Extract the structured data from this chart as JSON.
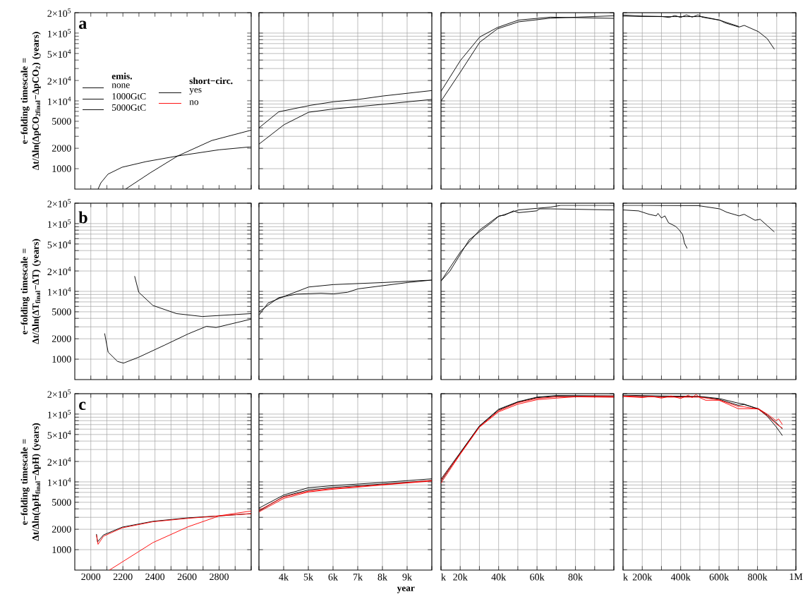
{
  "chart_data": [
    {
      "type": "line",
      "log": "y",
      "xlim": [
        1900,
        3000
      ],
      "ylim": [
        500,
        200000
      ],
      "tick_labels": "y",
      "ylabel": "e−folding timescale = Δt/Δln(ΔpCO$_{2final}$−ΔpCO$_{2}$) (years)",
      "annotations": [
        "a",
        "emis.",
        "none",
        "1000GtC",
        "5000GtC",
        "short−circ.",
        "yes",
        "no"
      ],
      "xticks": [
        2000,
        2100,
        2200,
        2300,
        2400,
        2500,
        2600,
        2700,
        2800,
        2900,
        3000
      ],
      "yticks": [
        1000,
        2000,
        {
          "value": 3000,
          "label": null
        },
        {
          "value": 4000,
          "label": null
        },
        5000,
        {
          "value": 6000,
          "label": null
        },
        {
          "value": 7000,
          "label": null
        },
        {
          "value": 8000,
          "label": null
        },
        {
          "value": 9000,
          "label": null
        },
        {
          "value": 10000,
          "label": "1×10$^{4}$"
        },
        {
          "value": 20000,
          "label": "2×10$^{4}$"
        },
        {
          "value": 30000,
          "label": null
        },
        {
          "value": 40000,
          "label": null
        },
        {
          "value": 50000,
          "label": "5×10$^{4}$"
        },
        {
          "value": 60000,
          "label": null
        },
        {
          "value": 70000,
          "label": null
        },
        {
          "value": 80000,
          "label": null
        },
        {
          "value": 90000,
          "label": null
        },
        {
          "value": 100000,
          "label": "1×10$^{5}$"
        },
        {
          "value": 200000,
          "label": "2×10$^{5}$"
        }
      ],
      "series": [
        {
          "color": "#000000",
          "x": [
            2045,
            2063,
            2107,
            2195,
            2344,
            2542,
            2800,
            3000
          ],
          "values": [
            500,
            620,
            830,
            1050,
            1270,
            1540,
            1900,
            2100
          ]
        },
        {
          "color": "#000000",
          "x": [
            2217,
            2371,
            2542,
            2754,
            3000
          ],
          "values": [
            500,
            870,
            1540,
            2600,
            3700
          ]
        }
      ]
    },
    {
      "type": "line",
      "log": "y",
      "grid": true,
      "xlim": [
        3000,
        10000
      ],
      "ylim": [
        500,
        200000
      ],
      "tick_labels": false,
      "xticks": [
        3000,
        4000,
        5000,
        6000,
        7000,
        8000,
        9000,
        10000
      ],
      "yticks": [
        1000,
        2000,
        3000,
        4000,
        5000,
        6000,
        7000,
        8000,
        9000,
        10000,
        20000,
        30000,
        40000,
        50000,
        60000,
        70000,
        80000,
        90000,
        100000,
        200000
      ],
      "series": [
        {
          "color": "#000000",
          "x": [
            3000,
            3800,
            5086,
            6014,
            7014,
            8014,
            10000
          ],
          "values": [
            4000,
            6900,
            8600,
            9700,
            10500,
            11800,
            14200
          ]
        },
        {
          "color": "#000000",
          "x": [
            3000,
            4014,
            5014,
            6014,
            8014,
            10000
          ],
          "values": [
            2300,
            4450,
            6800,
            7600,
            8900,
            10500
          ]
        }
      ]
    },
    {
      "type": "line",
      "log": "y",
      "grid": true,
      "xlim": [
        10000,
        100000
      ],
      "ylim": [
        500,
        200000
      ],
      "tick_labels": false,
      "xticks": [
        10000,
        20000,
        30000,
        40000,
        50000,
        60000,
        70000,
        80000,
        90000,
        100000
      ],
      "yticks": [
        1000,
        2000,
        3000,
        4000,
        5000,
        6000,
        7000,
        8000,
        9000,
        10000,
        20000,
        30000,
        40000,
        50000,
        60000,
        70000,
        80000,
        90000,
        100000,
        200000
      ],
      "series": [
        {
          "color": "#000000",
          "x": [
            10000,
            20100,
            30200,
            39400,
            50400,
            67000,
            100000
          ],
          "values": [
            13800,
            39400,
            87700,
            121000,
            155600,
            172000,
            165000
          ]
        },
        {
          "color": "#000000",
          "x": [
            10000,
            20100,
            30200,
            39400,
            50400,
            67000,
            100000
          ],
          "values": [
            9900,
            26600,
            73500,
            115600,
            146600,
            166000,
            180000
          ]
        }
      ]
    },
    {
      "type": "line",
      "log": "y",
      "grid": true,
      "xlim": [
        100000,
        1000000
      ],
      "ylim": [
        500,
        200000
      ],
      "tick_labels": false,
      "xticks": [
        100000,
        200000,
        300000,
        400000,
        500000,
        600000,
        700000,
        800000,
        900000,
        1000000
      ],
      "yticks": [
        1000,
        2000,
        3000,
        4000,
        5000,
        6000,
        7000,
        8000,
        9000,
        10000,
        20000,
        30000,
        40000,
        50000,
        60000,
        70000,
        80000,
        90000,
        100000,
        200000
      ],
      "series": [
        {
          "color": "#000000",
          "x": [
            100000,
            200000,
            300000,
            400000,
            511000,
            603000,
            631000,
            704000,
            731000,
            805000,
            851000,
            888000
          ],
          "values": [
            178000,
            176000,
            175000,
            175000,
            175000,
            155600,
            141500,
            122700,
            130000,
            105000,
            82700,
            57800
          ]
        },
        {
          "color": "#000000",
          "x": [
            100000,
            200000,
            300000,
            340000,
            370000,
            400000,
            430000,
            460000,
            490000,
            511000,
            603000,
            704000
          ],
          "values": [
            185000,
            178000,
            176000,
            170000,
            182000,
            170000,
            186000,
            172000,
            186000,
            172000,
            155000,
            125000
          ]
        }
      ]
    },
    {
      "type": "line",
      "log": "y",
      "grid": true,
      "xlim": [
        1900,
        3000
      ],
      "ylim": [
        500,
        200000
      ],
      "tick_labels": "y",
      "ylabel": "e−folding timescale = Δt/Δln(ΔT$_{final}$−ΔT) (years)",
      "annotations": [
        "b"
      ],
      "xticks": [
        2000,
        2100,
        2200,
        2300,
        2400,
        2500,
        2600,
        2700,
        2800,
        2900,
        3000
      ],
      "yticks": [
        1000,
        2000,
        {
          "value": 3000,
          "label": null
        },
        {
          "value": 4000,
          "label": null
        },
        5000,
        {
          "value": 6000,
          "label": null
        },
        {
          "value": 7000,
          "label": null
        },
        {
          "value": 8000,
          "label": null
        },
        {
          "value": 9000,
          "label": null
        },
        {
          "value": 10000,
          "label": "1×10$^{4}$"
        },
        {
          "value": 20000,
          "label": "2×10$^{4}$"
        },
        {
          "value": 30000,
          "label": null
        },
        {
          "value": 40000,
          "label": null
        },
        {
          "value": 50000,
          "label": "5×10$^{4}$"
        },
        {
          "value": 60000,
          "label": null
        },
        {
          "value": 70000,
          "label": null
        },
        {
          "value": 80000,
          "label": null
        },
        {
          "value": 90000,
          "label": null
        },
        {
          "value": 100000,
          "label": "1×10$^{5}$"
        },
        {
          "value": 200000,
          "label": "2×10$^{5}$"
        }
      ],
      "series": [
        {
          "color": "#000000",
          "x": [
            2273,
            2299,
            2387,
            2534,
            2695,
            3000
          ],
          "values": [
            16800,
            9700,
            6200,
            4700,
            4260,
            4700
          ]
        },
        {
          "color": "#000000",
          "x": [
            2086,
            2108,
            2167,
            2204,
            2299,
            2460,
            2607,
            2721,
            2781,
            3000
          ],
          "values": [
            2400,
            1270,
            925,
            875,
            1070,
            1610,
            2360,
            3050,
            2930,
            3900
          ]
        }
      ]
    },
    {
      "type": "line",
      "log": "y",
      "grid": true,
      "xlim": [
        3000,
        10000
      ],
      "ylim": [
        500,
        200000
      ],
      "tick_labels": false,
      "xticks": [
        3000,
        4000,
        5000,
        6000,
        7000,
        8000,
        9000,
        10000
      ],
      "yticks": [
        1000,
        2000,
        3000,
        4000,
        5000,
        6000,
        7000,
        8000,
        9000,
        10000,
        20000,
        30000,
        40000,
        50000,
        60000,
        70000,
        80000,
        90000,
        100000,
        200000
      ],
      "series": [
        {
          "color": "#000000",
          "x": [
            3000,
            3371,
            4086,
            5014,
            6014,
            8014,
            10000
          ],
          "values": [
            4450,
            6750,
            8600,
            11600,
            12600,
            13500,
            14700
          ]
        },
        {
          "color": "#000000",
          "x": [
            3000,
            3800,
            4514,
            5514,
            6014,
            6586,
            7014,
            9014,
            10000
          ],
          "values": [
            5000,
            8100,
            9100,
            9400,
            9200,
            9700,
            10900,
            13500,
            14700
          ]
        }
      ]
    },
    {
      "type": "line",
      "log": "y",
      "grid": true,
      "xlim": [
        10000,
        100000
      ],
      "ylim": [
        500,
        200000
      ],
      "tick_labels": false,
      "xticks": [
        10000,
        20000,
        30000,
        40000,
        50000,
        60000,
        70000,
        80000,
        90000,
        100000
      ],
      "yticks": [
        1000,
        2000,
        3000,
        4000,
        5000,
        6000,
        7000,
        8000,
        9000,
        10000,
        20000,
        30000,
        40000,
        50000,
        60000,
        70000,
        80000,
        90000,
        100000,
        200000
      ],
      "series": [
        {
          "color": "#000000",
          "x": [
            10000,
            20100,
            30200,
            39400,
            50400,
            67000,
            72400,
            100000
          ],
          "values": [
            14200,
            38100,
            80800,
            125600,
            159000,
            175000,
            186000,
            186000
          ]
        },
        {
          "color": "#000000",
          "x": [
            10000,
            14600,
            24700,
            36600,
            40300,
            43100,
            47700,
            50400,
            59700,
            61400,
            67000,
            100000
          ],
          "values": [
            14200,
            19800,
            57800,
            105000,
            130000,
            133000,
            154000,
            145000,
            154000,
            165000,
            165000,
            159000
          ]
        }
      ]
    },
    {
      "type": "line",
      "log": "y",
      "grid": true,
      "xlim": [
        100000,
        1000000
      ],
      "ylim": [
        500,
        200000
      ],
      "tick_labels": false,
      "xticks": [
        100000,
        200000,
        300000,
        400000,
        500000,
        600000,
        700000,
        800000,
        900000,
        1000000
      ],
      "yticks": [
        1000,
        2000,
        3000,
        4000,
        5000,
        6000,
        7000,
        8000,
        9000,
        10000,
        20000,
        30000,
        40000,
        50000,
        60000,
        70000,
        80000,
        90000,
        100000,
        200000
      ],
      "series": [
        {
          "color": "#000000",
          "x": [
            100000,
            200000,
            300000,
            493000,
            603000,
            640000,
            704000,
            731000,
            787000,
            814000,
            851000,
            888000
          ],
          "values": [
            186000,
            186000,
            185000,
            184000,
            165000,
            147000,
            130000,
            137000,
            112000,
            115600,
            93200,
            75200
          ]
        },
        {
          "color": "#000000",
          "x": [
            100000,
            181000,
            236000,
            273000,
            282000,
            300000,
            318000,
            337000,
            374000,
            392000,
            410000,
            420000,
            434000
          ],
          "values": [
            159000,
            154000,
            137000,
            130000,
            141500,
            121000,
            130000,
            102600,
            91000,
            80800,
            69200,
            51300,
            42900
          ]
        }
      ]
    },
    {
      "type": "line",
      "log": "y",
      "grid": true,
      "xlim": [
        1900,
        3000
      ],
      "ylim": [
        500,
        200000
      ],
      "ylabel": "e−folding timescale = Δt/Δln(ΔpH$_{final}$−ΔpH) (years)",
      "annotations": [
        "c"
      ],
      "xticks": [
        2000,
        {
          "value": 2100,
          "label": null
        },
        2200,
        {
          "value": 2300,
          "label": null
        },
        2400,
        {
          "value": 2500,
          "label": null
        },
        2600,
        {
          "value": 2700,
          "label": null
        },
        2800,
        {
          "value": 2900,
          "label": null
        },
        {
          "value": 3000,
          "label": null
        }
      ],
      "yticks": [
        1000,
        2000,
        {
          "value": 3000,
          "label": null
        },
        {
          "value": 4000,
          "label": null
        },
        5000,
        {
          "value": 6000,
          "label": null
        },
        {
          "value": 7000,
          "label": null
        },
        {
          "value": 8000,
          "label": null
        },
        {
          "value": 9000,
          "label": null
        },
        {
          "value": 10000,
          "label": "1×10$^{4}$"
        },
        {
          "value": 20000,
          "label": "2×10$^{4}$"
        },
        {
          "value": 30000,
          "label": null
        },
        {
          "value": 40000,
          "label": null
        },
        {
          "value": 50000,
          "label": "5×10$^{4}$"
        },
        {
          "value": 60000,
          "label": null
        },
        {
          "value": 70000,
          "label": null
        },
        {
          "value": 80000,
          "label": null
        },
        {
          "value": 90000,
          "label": null
        },
        {
          "value": 100000,
          "label": "1×10$^{5}$"
        },
        {
          "value": 200000,
          "label": "2×10$^{5}$"
        }
      ],
      "series": [
        {
          "color": "#000000",
          "x": [
            2035,
            2042,
            2079,
            2196,
            2387,
            2607,
            2800,
            3000
          ],
          "values": [
            1700,
            1300,
            1650,
            2150,
            2620,
            2950,
            3150,
            3400
          ]
        },
        {
          "color": "#ff0000",
          "x": [
            2035,
            2045,
            2079,
            2196,
            2387,
            2607,
            2800,
            3000
          ],
          "values": [
            1650,
            1200,
            1580,
            2100,
            2580,
            2900,
            3150,
            3400
          ]
        },
        {
          "color": "#ff0000",
          "x": [
            2116,
            2387,
            2607,
            2805,
            3000
          ],
          "values": [
            500,
            1270,
            2180,
            3170,
            3720
          ]
        }
      ]
    },
    {
      "type": "line",
      "log": "y",
      "grid": true,
      "xlim": [
        3000,
        10000
      ],
      "ylim": [
        500,
        200000
      ],
      "tick_labels": "x",
      "xlabel": "year",
      "xticks": [
        {
          "value": 3000,
          "label": null
        },
        {
          "value": 4000,
          "label": "4k"
        },
        {
          "value": 5000,
          "label": "5k"
        },
        {
          "value": 6000,
          "label": "6k"
        },
        {
          "value": 7000,
          "label": "7k"
        },
        {
          "value": 8000,
          "label": "8k"
        },
        {
          "value": 9000,
          "label": "9k"
        },
        {
          "value": 10000,
          "label": null
        }
      ],
      "yticks": [
        1000,
        2000,
        3000,
        4000,
        5000,
        6000,
        7000,
        8000,
        9000,
        10000,
        20000,
        30000,
        40000,
        50000,
        60000,
        70000,
        80000,
        90000,
        100000,
        200000
      ],
      "series": [
        {
          "color": "#000000",
          "x": [
            3000,
            4000,
            5000,
            6000,
            8000,
            10000
          ],
          "values": [
            4100,
            6400,
            8200,
            8800,
            9800,
            11100
          ]
        },
        {
          "color": "#000000",
          "x": [
            3000,
            4000,
            5000,
            6000,
            8000,
            10000
          ],
          "values": [
            3700,
            6100,
            7600,
            8300,
            9300,
            10500
          ]
        },
        {
          "color": "#ff0000",
          "x": [
            3000,
            4000,
            5000,
            6000,
            8000,
            10000
          ],
          "values": [
            3600,
            5700,
            7100,
            7800,
            9000,
            10300
          ]
        },
        {
          "color": "#ff0000",
          "x": [
            3000,
            4000,
            5000,
            6000,
            8000,
            10000
          ],
          "values": [
            3800,
            6000,
            7300,
            8000,
            9100,
            10500
          ]
        }
      ]
    },
    {
      "type": "line",
      "log": "y",
      "grid": true,
      "xlim": [
        10000,
        100000
      ],
      "ylim": [
        500,
        200000
      ],
      "tick_labels": "x",
      "xticks": [
        {
          "value": 10000,
          "label": "k"
        },
        {
          "value": 20000,
          "label": "20k"
        },
        {
          "value": 30000,
          "label": null
        },
        {
          "value": 40000,
          "label": "40k"
        },
        {
          "value": 50000,
          "label": null
        },
        {
          "value": 60000,
          "label": "60k"
        },
        {
          "value": 70000,
          "label": null
        },
        {
          "value": 80000,
          "label": "80k"
        },
        {
          "value": 90000,
          "label": null
        },
        {
          "value": 100000,
          "label": null
        }
      ],
      "yticks": [
        1000,
        2000,
        3000,
        4000,
        5000,
        6000,
        7000,
        8000,
        9000,
        10000,
        20000,
        30000,
        40000,
        50000,
        60000,
        70000,
        80000,
        90000,
        100000,
        200000
      ],
      "series": [
        {
          "color": "#000000",
          "x": [
            10000,
            20000,
            30000,
            40000,
            50000,
            60000,
            70000,
            100000
          ],
          "values": [
            11000,
            27000,
            67000,
            118000,
            152000,
            178000,
            188000,
            186000
          ]
        },
        {
          "color": "#000000",
          "x": [
            10000,
            20000,
            30000,
            40000,
            50000,
            60000,
            70000,
            100000
          ],
          "values": [
            10200,
            26500,
            66000,
            115000,
            150000,
            175000,
            183000,
            181000
          ]
        },
        {
          "color": "#ff0000",
          "x": [
            10000,
            20000,
            30000,
            40000,
            50000,
            60000,
            70000,
            100000
          ],
          "values": [
            10600,
            26000,
            65000,
            112000,
            147000,
            170000,
            180000,
            184000
          ]
        },
        {
          "color": "#ff0000",
          "x": [
            10000,
            20000,
            30000,
            40000,
            50000,
            60000,
            70000,
            80000,
            100000
          ],
          "values": [
            9600,
            25500,
            64000,
            108000,
            140000,
            163000,
            172000,
            180000,
            177000
          ]
        }
      ]
    },
    {
      "type": "line",
      "log": "y",
      "grid": true,
      "xlim": [
        100000,
        1000000
      ],
      "ylim": [
        500,
        200000
      ],
      "tick_labels": "x",
      "xticks": [
        {
          "value": 100000,
          "label": "k"
        },
        {
          "value": 200000,
          "label": "200k"
        },
        {
          "value": 300000,
          "label": null
        },
        {
          "value": 400000,
          "label": "400k"
        },
        {
          "value": 500000,
          "label": null
        },
        {
          "value": 600000,
          "label": "600k"
        },
        {
          "value": 700000,
          "label": null
        },
        {
          "value": 800000,
          "label": "800k"
        },
        {
          "value": 900000,
          "label": null
        },
        {
          "value": 1000000,
          "label": "1M"
        }
      ],
      "yticks": [
        1000,
        2000,
        3000,
        4000,
        5000,
        6000,
        7000,
        8000,
        9000,
        10000,
        20000,
        30000,
        40000,
        50000,
        60000,
        70000,
        80000,
        90000,
        100000,
        200000
      ],
      "series": [
        {
          "color": "#000000",
          "x": [
            100000,
            300000,
            500000,
            600000,
            700000,
            731000,
            805000,
            851000,
            897000,
            930000
          ],
          "values": [
            190000,
            185000,
            182000,
            170000,
            145000,
            140000,
            118000,
            93000,
            65000,
            48000
          ]
        },
        {
          "color": "#000000",
          "x": [
            100000,
            300000,
            500000,
            600000,
            700000,
            731000,
            805000,
            851000,
            897000,
            930000
          ],
          "values": [
            185000,
            180000,
            180000,
            165000,
            135000,
            138000,
            120000,
            97000,
            75000,
            60000
          ]
        },
        {
          "color": "#ff0000",
          "x": [
            100000,
            200000,
            250000,
            300000,
            350000,
            400000,
            440000,
            460000,
            480000,
            500000,
            530000,
            600000,
            700000,
            731000,
            805000,
            851000,
            897000,
            910000,
            930000
          ],
          "values": [
            182000,
            175000,
            183000,
            172000,
            185000,
            170000,
            190000,
            175000,
            195000,
            175000,
            160000,
            160000,
            120000,
            120000,
            120000,
            100000,
            80000,
            85000,
            70000
          ]
        },
        {
          "color": "#ff0000",
          "x": [
            100000,
            300000,
            400000,
            500000,
            600000,
            700000,
            731000,
            805000,
            851000,
            897000,
            930000
          ],
          "values": [
            185000,
            178000,
            178000,
            178000,
            162000,
            130000,
            128000,
            118000,
            95000,
            72000,
            62000
          ]
        }
      ]
    }
  ]
}
